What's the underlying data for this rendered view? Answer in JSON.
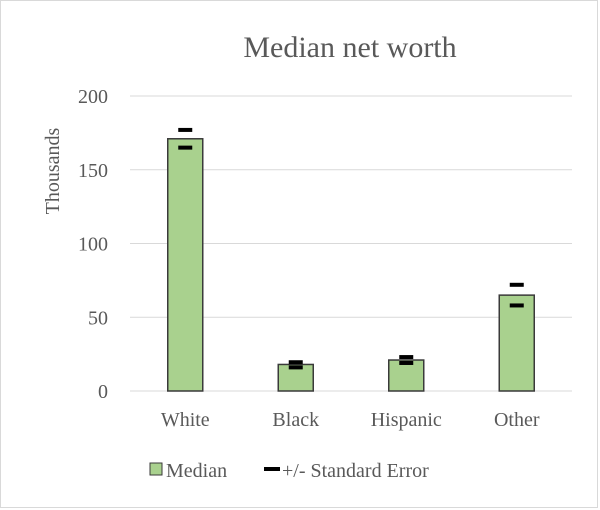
{
  "chart_data": {
    "type": "bar",
    "title": "Median net worth",
    "ylabel": "Thousands",
    "xlabel": "",
    "categories": [
      "White",
      "Black",
      "Hispanic",
      "Other"
    ],
    "series": [
      {
        "name": "Median",
        "values": [
          171,
          18,
          21,
          65
        ],
        "color": "#a9d18e",
        "border": "#3a3a3a"
      }
    ],
    "error_bars": {
      "name": "+/- Standard Error",
      "upper": [
        177,
        19.5,
        23,
        72
      ],
      "lower": [
        165,
        16,
        19,
        58
      ],
      "color": "#000000"
    },
    "ylim": [
      0,
      200
    ],
    "yticks": [
      "0",
      "50",
      "100",
      "150",
      "200"
    ],
    "ytick_values": [
      0,
      50,
      100,
      150,
      200
    ],
    "grid": true,
    "legend_position": "bottom"
  },
  "legend": {
    "median_label": "Median",
    "error_label": "+/- Standard Error"
  }
}
